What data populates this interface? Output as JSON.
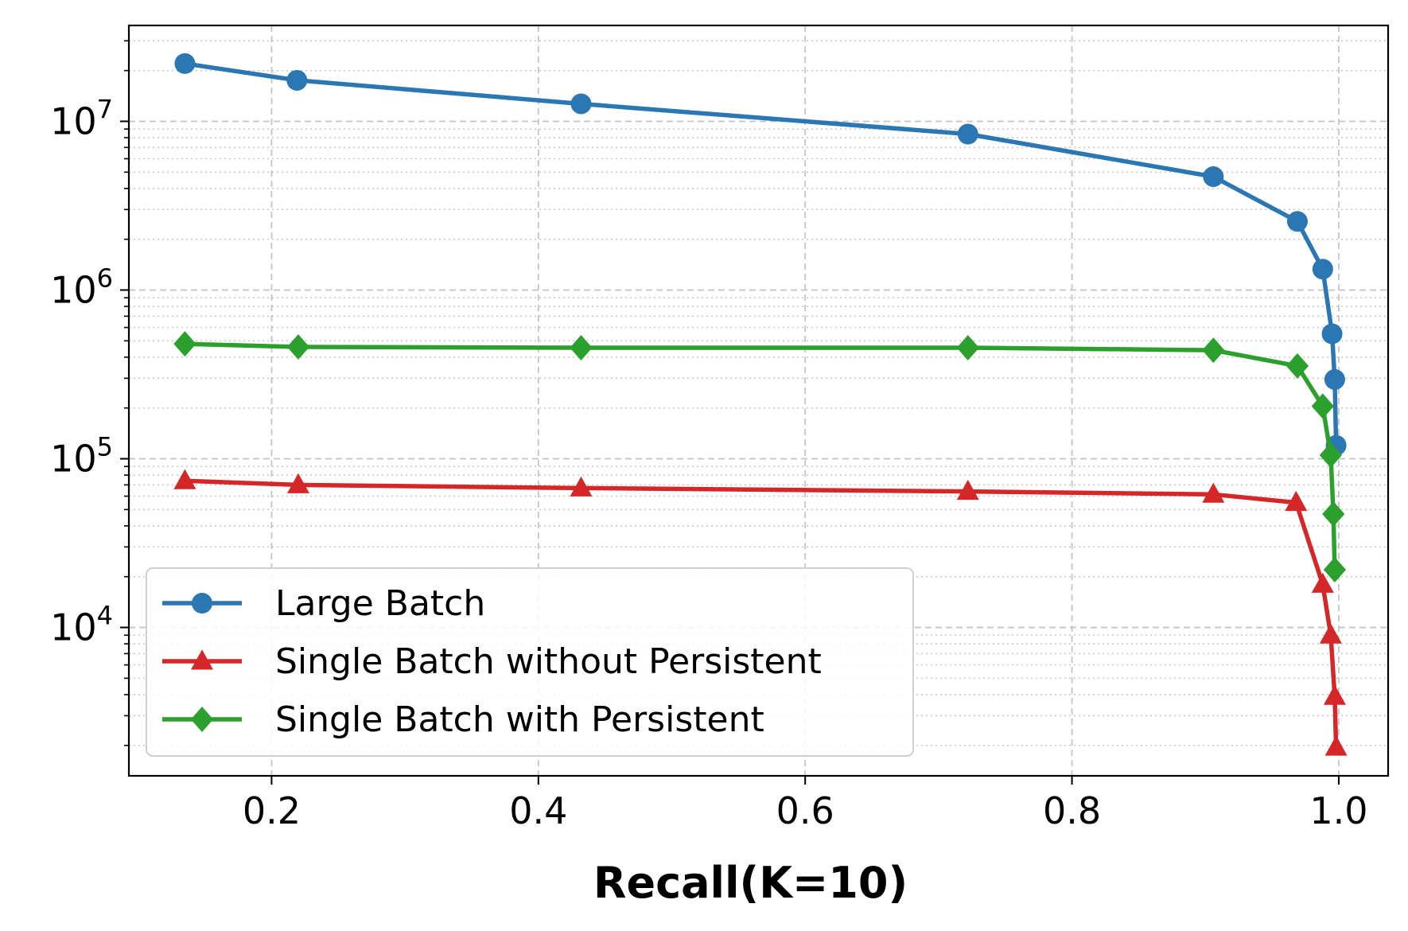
{
  "chart_data": {
    "type": "line",
    "title": "",
    "xlabel": "Recall(K=10)",
    "ylabel": "",
    "yscale": "log",
    "xlim": [
      0.093,
      1.037
    ],
    "ylim": [
      1320,
      37000000
    ],
    "xticks": [
      0.2,
      0.4,
      0.6,
      0.8,
      1.0
    ],
    "xtick_labels": [
      "0.2",
      "0.4",
      "0.6",
      "0.8",
      "1.0"
    ],
    "yticks": [
      {
        "value": 10000,
        "base": "10",
        "exp": "4"
      },
      {
        "value": 100000,
        "base": "10",
        "exp": "5"
      },
      {
        "value": 1000000,
        "base": "10",
        "exp": "6"
      },
      {
        "value": 10000000,
        "base": "10",
        "exp": "7"
      }
    ],
    "grid": true,
    "legend_position": "lower-left",
    "series": [
      {
        "name": "Large Batch",
        "color": "#2a77b4",
        "marker": "circle",
        "x": [
          0.135,
          0.219,
          0.432,
          0.722,
          0.906,
          0.969,
          0.988,
          0.995,
          0.997,
          0.998
        ],
        "y": [
          22000000,
          17500000,
          12700000,
          8400000,
          4700000,
          2550000,
          1330000,
          550000,
          295000,
          120000
        ]
      },
      {
        "name": "Single Batch without Persistent",
        "color": "#d62728",
        "marker": "triangle",
        "x": [
          0.135,
          0.22,
          0.432,
          0.722,
          0.906,
          0.968,
          0.988,
          0.994,
          0.997,
          0.998
        ],
        "y": [
          74000,
          70000,
          67000,
          64000,
          61500,
          55000,
          18000,
          9000,
          3900,
          1950
        ]
      },
      {
        "name": "Single Batch with Persistent",
        "color": "#2ca02c",
        "marker": "diamond",
        "x": [
          0.135,
          0.22,
          0.432,
          0.722,
          0.906,
          0.969,
          0.988,
          0.994,
          0.996,
          0.997
        ],
        "y": [
          480000,
          460000,
          455000,
          455000,
          440000,
          355000,
          205000,
          105000,
          47000,
          22000
        ]
      }
    ]
  }
}
